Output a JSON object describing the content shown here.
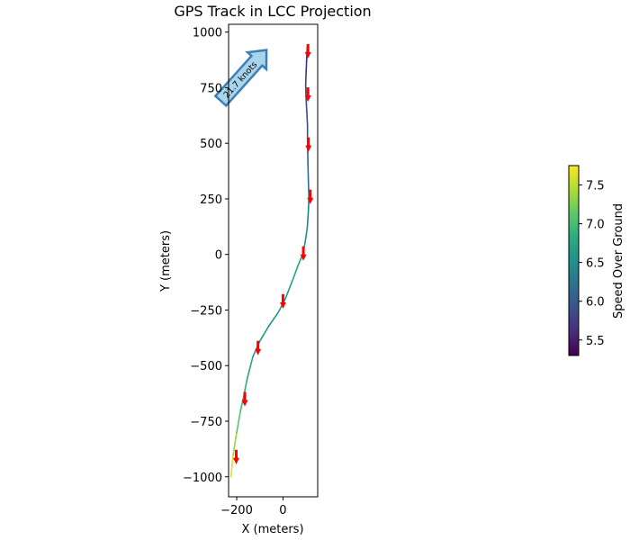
{
  "chart_data": {
    "type": "line",
    "title": "GPS Track in LCC Projection",
    "xlabel": "X (meters)",
    "ylabel": "Y (meters)",
    "xlim": [
      -235,
      150
    ],
    "ylim": [
      -1090,
      1035
    ],
    "x_ticks": [
      -200,
      0
    ],
    "y_ticks": [
      -1000,
      -750,
      -500,
      -250,
      0,
      250,
      500,
      750,
      1000
    ],
    "track": {
      "x": [
        -225,
        -215,
        -200,
        -183,
        -170,
        -155,
        -130,
        -100,
        -60,
        -20,
        10,
        40,
        65,
        85,
        95,
        105,
        110,
        112,
        110,
        108,
        107,
        106,
        106,
        103,
        100,
        98,
        100,
        102,
        104,
        105
      ],
      "y": [
        -1000,
        -900,
        -800,
        -700,
        -640,
        -560,
        -460,
        -390,
        -320,
        -260,
        -200,
        -120,
        -50,
        0,
        50,
        120,
        200,
        260,
        320,
        400,
        460,
        520,
        580,
        640,
        700,
        760,
        820,
        870,
        910,
        935
      ],
      "speed": [
        7.7,
        7.5,
        7.2,
        7.0,
        6.9,
        6.8,
        6.7,
        6.6,
        6.6,
        6.6,
        6.6,
        6.7,
        6.8,
        6.7,
        6.6,
        6.4,
        6.4,
        6.3,
        6.2,
        6.1,
        6.0,
        6.0,
        5.9,
        5.9,
        5.8,
        5.8,
        5.7,
        5.6,
        5.5,
        5.4
      ]
    },
    "heading_arrows": [
      {
        "x": -202,
        "y": -915
      },
      {
        "x": -165,
        "y": -655
      },
      {
        "x": -108,
        "y": -425
      },
      {
        "x": 0,
        "y": -215
      },
      {
        "x": 88,
        "y": 0
      },
      {
        "x": 118,
        "y": 255
      },
      {
        "x": 110,
        "y": 490
      },
      {
        "x": 108,
        "y": 715
      },
      {
        "x": 108,
        "y": 910
      }
    ],
    "annotation": {
      "text": "21.7 knots",
      "x": -170,
      "y": 805
    },
    "colorbar": {
      "label": "Speed Over Ground",
      "range": [
        5.3,
        7.75
      ],
      "ticks": [
        "5.5",
        "6.0",
        "6.5",
        "7.0",
        "7.5"
      ],
      "tick_values": [
        5.5,
        6.0,
        6.5,
        7.0,
        7.5
      ],
      "colormap": "viridis"
    },
    "colors": {
      "arrow": "#ff0000",
      "annotation_fill": "#a8d4ec",
      "annotation_edge": "#3b80b7"
    }
  }
}
